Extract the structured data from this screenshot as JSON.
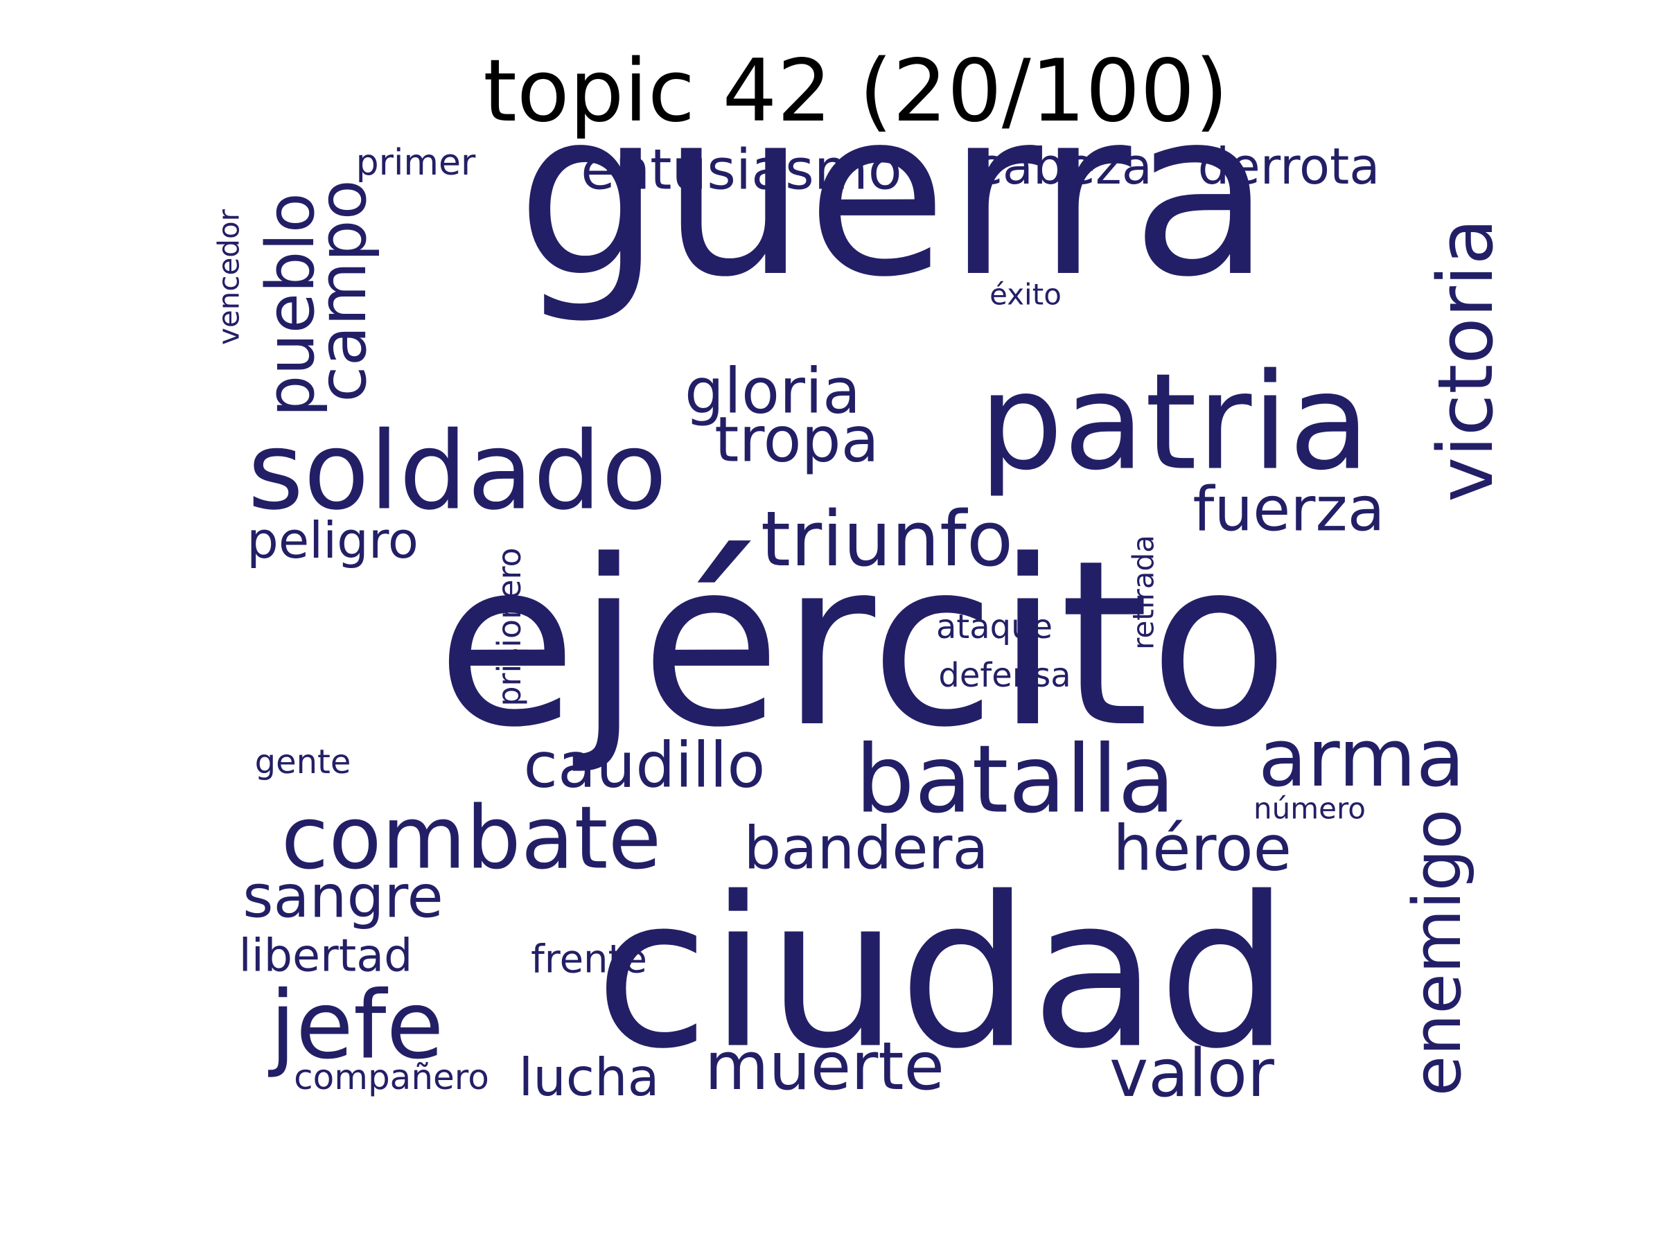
{
  "chart_data": {
    "type": "wordcloud",
    "title": "topic 42 (20/100)",
    "color": "#231f66",
    "words": [
      {
        "text": "guerra",
        "rank": 1
      },
      {
        "text": "ejército",
        "rank": 2
      },
      {
        "text": "ciudad",
        "rank": 3
      },
      {
        "text": "patria",
        "rank": 4
      },
      {
        "text": "soldado",
        "rank": 5
      },
      {
        "text": "batalla",
        "rank": 6
      },
      {
        "text": "combate",
        "rank": 7
      },
      {
        "text": "victoria",
        "rank": 8
      },
      {
        "text": "triunfo",
        "rank": 9
      },
      {
        "text": "arma",
        "rank": 10
      },
      {
        "text": "enemigo",
        "rank": 11
      },
      {
        "text": "jefe",
        "rank": 12
      },
      {
        "text": "pueblo",
        "rank": 13
      },
      {
        "text": "campo",
        "rank": 14
      },
      {
        "text": "gloria",
        "rank": 15
      },
      {
        "text": "tropa",
        "rank": 16
      },
      {
        "text": "muerte",
        "rank": 17
      },
      {
        "text": "valor",
        "rank": 18
      },
      {
        "text": "caudillo",
        "rank": 19
      },
      {
        "text": "fuerza",
        "rank": 20
      },
      {
        "text": "bandera",
        "rank": 21
      },
      {
        "text": "héroe",
        "rank": 22
      },
      {
        "text": "sangre",
        "rank": 23
      },
      {
        "text": "entusiasmo",
        "rank": 24
      },
      {
        "text": "derrota",
        "rank": 25
      },
      {
        "text": "cabeza",
        "rank": 26
      },
      {
        "text": "lucha",
        "rank": 27
      },
      {
        "text": "peligro",
        "rank": 28
      },
      {
        "text": "libertad",
        "rank": 29
      },
      {
        "text": "prisionero",
        "rank": 30
      },
      {
        "text": "frente",
        "rank": 31
      },
      {
        "text": "compañero",
        "rank": 32
      },
      {
        "text": "retirada",
        "rank": 33
      },
      {
        "text": "ataque",
        "rank": 34
      },
      {
        "text": "defensa",
        "rank": 35
      },
      {
        "text": "primer",
        "rank": 36
      },
      {
        "text": "vencedor",
        "rank": 37
      },
      {
        "text": "gente",
        "rank": 38
      },
      {
        "text": "número",
        "rank": 39
      },
      {
        "text": "éxito",
        "rank": 40
      }
    ]
  }
}
